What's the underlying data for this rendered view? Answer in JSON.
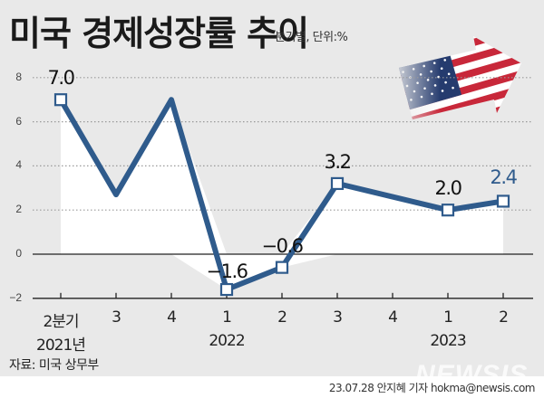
{
  "header": {
    "title": "미국 경제성장률 추이",
    "subtitle": "분기별, 단위:%"
  },
  "source": "자료: 미국 상무부",
  "credit": "23.07.28 안지혜 기자 hokma@newsis.com",
  "watermark": "NEWSIS",
  "colors": {
    "background": "#e9e9e9",
    "plot_fill": "#ffffff",
    "line": "#2f5b8c",
    "accent_label": "#2f5b8c",
    "text": "#111111"
  },
  "x_labels": [
    "2분기",
    "3",
    "4",
    "1",
    "2",
    "3",
    "4",
    "1",
    "2"
  ],
  "year_labels": [
    {
      "label": "2021년",
      "index": 0
    },
    {
      "label": "2022",
      "index": 3
    },
    {
      "label": "2023",
      "index": 7
    }
  ],
  "y_ticks": [
    "8",
    "6",
    "4",
    "2",
    "0",
    "−2"
  ],
  "point_labels": [
    {
      "index": 0,
      "text": "7.0"
    },
    {
      "index": 3,
      "text": "−1.6"
    },
    {
      "index": 4,
      "text": "−0.6"
    },
    {
      "index": 5,
      "text": "3.2"
    },
    {
      "index": 7,
      "text": "2.0"
    },
    {
      "index": 8,
      "text": "2.4"
    }
  ],
  "chart_data": {
    "type": "line",
    "title": "미국 경제성장률 추이",
    "subtitle": "분기별, 단위:%",
    "categories": [
      "2021 Q2",
      "2021 Q3",
      "2021 Q4",
      "2022 Q1",
      "2022 Q2",
      "2022 Q3",
      "2022 Q4",
      "2023 Q1",
      "2023 Q2"
    ],
    "x_tick_labels": [
      "2분기",
      "3",
      "4",
      "1",
      "2",
      "3",
      "4",
      "1",
      "2"
    ],
    "year_labels": [
      "2021년",
      "2022",
      "2023"
    ],
    "series": [
      {
        "name": "미국 경제성장률",
        "values": [
          7.0,
          2.7,
          7.0,
          -1.6,
          -0.6,
          3.2,
          2.6,
          2.0,
          2.4
        ],
        "markers": [
          true,
          false,
          false,
          true,
          true,
          true,
          false,
          true,
          true
        ],
        "labeled_values": {
          "2021 Q2": "7.0",
          "2022 Q1": "−1.6",
          "2022 Q2": "−0.6",
          "2022 Q3": "3.2",
          "2023 Q1": "2.0",
          "2023 Q2": "2.4"
        }
      }
    ],
    "xlabel": "",
    "ylabel": "",
    "ylim": [
      -2,
      8
    ],
    "yticks": [
      -2,
      0,
      2,
      4,
      6,
      8
    ],
    "grid": "horizontal dotted",
    "legend": "none",
    "source": "자료: 미국 상무부"
  }
}
